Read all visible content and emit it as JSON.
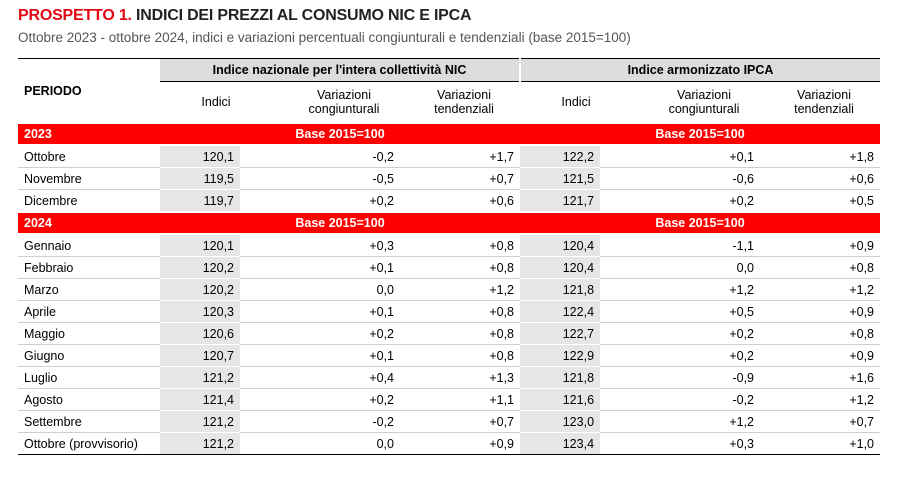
{
  "header": {
    "title_lead": "PROSPETTO 1.",
    "title": "INDICI DEI PREZZI AL CONSUMO NIC E IPCA",
    "subtitle": "Ottobre 2023 - ottobre 2024, indici e variazioni percentuali congiunturali e tendenziali (base 2015=100)"
  },
  "table": {
    "period_header": "PERIODO",
    "groups": [
      "Indice nazionale per l'intera collettività NIC",
      "Indice armonizzato IPCA"
    ],
    "columns": [
      "Indici",
      "Variazioni congiunturali",
      "Variazioni tendenziali",
      "Indici",
      "Variazioni congiunturali",
      "Variazioni tendenziali"
    ],
    "sections": [
      {
        "year": "2023",
        "bases": [
          "Base 2015=100",
          "Base 2015=100"
        ],
        "rows": [
          [
            "Ottobre",
            "120,1",
            "-0,2",
            "+1,7",
            "122,2",
            "+0,1",
            "+1,8"
          ],
          [
            "Novembre",
            "119,5",
            "-0,5",
            "+0,7",
            "121,5",
            "-0,6",
            "+0,6"
          ],
          [
            "Dicembre",
            "119,7",
            "+0,2",
            "+0,6",
            "121,7",
            "+0,2",
            "+0,5"
          ]
        ]
      },
      {
        "year": "2024",
        "bases": [
          "Base 2015=100",
          "Base 2015=100"
        ],
        "rows": [
          [
            "Gennaio",
            "120,1",
            "+0,3",
            "+0,8",
            "120,4",
            "-1,1",
            "+0,9"
          ],
          [
            "Febbraio",
            "120,2",
            "+0,1",
            "+0,8",
            "120,4",
            "0,0",
            "+0,8"
          ],
          [
            "Marzo",
            "120,2",
            "0,0",
            "+1,2",
            "121,8",
            "+1,2",
            "+1,2"
          ],
          [
            "Aprile",
            "120,3",
            "+0,1",
            "+0,8",
            "122,4",
            "+0,5",
            "+0,9"
          ],
          [
            "Maggio",
            "120,6",
            "+0,2",
            "+0,8",
            "122,7",
            "+0,2",
            "+0,8"
          ],
          [
            "Giugno",
            "120,7",
            "+0,1",
            "+0,8",
            "122,9",
            "+0,2",
            "+0,9"
          ],
          [
            "Luglio",
            "121,2",
            "+0,4",
            "+1,3",
            "121,8",
            "-0,9",
            "+1,6"
          ],
          [
            "Agosto",
            "121,4",
            "+0,2",
            "+1,1",
            "121,6",
            "-0,2",
            "+1,2"
          ],
          [
            "Settembre",
            "121,2",
            "-0,2",
            "+0,7",
            "123,0",
            "+1,2",
            "+0,7"
          ],
          [
            "Ottobre (provvisorio)",
            "121,2",
            "0,0",
            "+0,9",
            "123,4",
            "+0,3",
            "+1,0"
          ]
        ]
      }
    ]
  }
}
